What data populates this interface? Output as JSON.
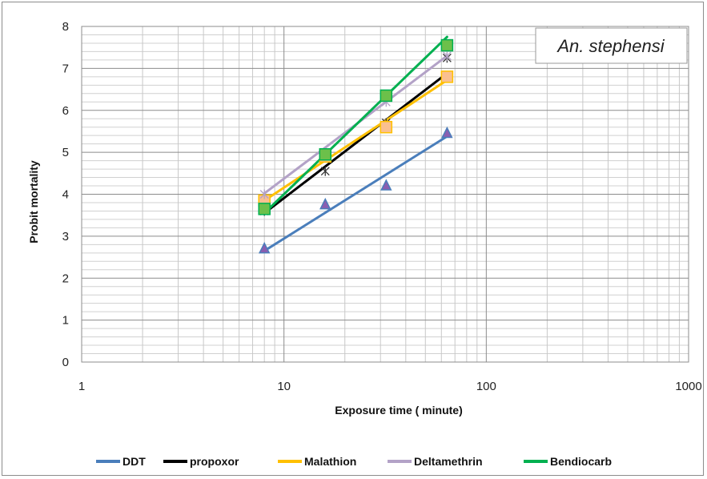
{
  "chart_data": {
    "type": "scatter",
    "title": "An. stephensi",
    "xlabel": "Exposure time ( minute)",
    "ylabel": "Probit mortality",
    "x_scale": "log",
    "xlim": [
      1,
      1000
    ],
    "ylim": [
      0,
      8
    ],
    "x_ticks": [
      "1",
      "10",
      "100",
      "1000"
    ],
    "y_ticks": [
      "0",
      "1",
      "2",
      "3",
      "4",
      "5",
      "6",
      "7",
      "8"
    ],
    "grid": true,
    "legend_position": "bottom",
    "series": [
      {
        "name": "DDT",
        "color": "#4a7ebb",
        "marker": "triangle",
        "marker_color": "#8a5eb0",
        "points": [
          [
            8,
            2.7
          ],
          [
            16,
            3.75
          ],
          [
            32,
            4.2
          ],
          [
            64,
            5.45
          ]
        ],
        "fit": [
          [
            8,
            2.65
          ],
          [
            64,
            5.38
          ]
        ]
      },
      {
        "name": "propoxor",
        "color": "#000000",
        "marker": "star",
        "marker_color": "#333333",
        "points": [
          [
            8,
            3.6
          ],
          [
            16,
            4.55
          ],
          [
            32,
            5.7
          ],
          [
            64,
            7.25
          ]
        ],
        "fit": [
          [
            8,
            3.55
          ],
          [
            60,
            6.78
          ]
        ]
      },
      {
        "name": "Malathion",
        "color": "#ffc000",
        "marker": "square",
        "marker_color": "#fac090",
        "points": [
          [
            8,
            3.85
          ],
          [
            16,
            4.9
          ],
          [
            32,
            5.6
          ],
          [
            64,
            6.8
          ]
        ],
        "fit": [
          [
            8,
            3.85
          ],
          [
            64,
            6.72
          ]
        ]
      },
      {
        "name": "Deltamethrin",
        "color": "#b3a2c7",
        "marker": "asterisk",
        "marker_color": "#b3a2c7",
        "points": [
          [
            8,
            4.0
          ],
          [
            16,
            5.0
          ],
          [
            32,
            6.2
          ],
          [
            64,
            7.3
          ]
        ],
        "fit": [
          [
            8,
            4.02
          ],
          [
            64,
            7.3
          ]
        ]
      },
      {
        "name": "Bendiocarb",
        "color": "#00b050",
        "marker": "square",
        "marker_color": "#6cc04a",
        "points": [
          [
            8,
            3.65
          ],
          [
            16,
            4.95
          ],
          [
            32,
            6.35
          ],
          [
            64,
            7.55
          ]
        ],
        "fit": [
          [
            8,
            3.55
          ],
          [
            64,
            7.75
          ]
        ]
      }
    ]
  }
}
